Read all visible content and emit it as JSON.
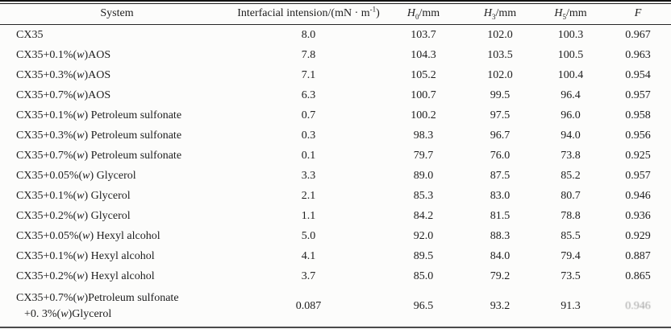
{
  "table": {
    "headers": {
      "system": "System",
      "ift": {
        "pre": "Interfacial intension/(mN · m",
        "sup": "-1",
        "post": ")"
      },
      "h0": {
        "base": "H",
        "sub": "0",
        "unit": "/mm"
      },
      "h3": {
        "base": "H",
        "sub": "3",
        "unit": "/mm"
      },
      "h5": {
        "base": "H",
        "sub": "5",
        "unit": "/mm"
      },
      "f": "F"
    },
    "rows": [
      {
        "system": "CX35",
        "ift": "8.0",
        "h0": "103.7",
        "h3": "102.0",
        "h5": "100.3",
        "f": "0.967"
      },
      {
        "system": "CX35+0.1%(w)AOS",
        "ift": "7.8",
        "h0": "104.3",
        "h3": "103.5",
        "h5": "100.5",
        "f": "0.963"
      },
      {
        "system": "CX35+0.3%(w)AOS",
        "ift": "7.1",
        "h0": "105.2",
        "h3": "102.0",
        "h5": "100.4",
        "f": "0.954"
      },
      {
        "system": "CX35+0.7%(w)AOS",
        "ift": "6.3",
        "h0": "100.7",
        "h3": "99.5",
        "h5": "96.4",
        "f": "0.957"
      },
      {
        "system": "CX35+0.1%(w) Petroleum sulfonate",
        "ift": "0.7",
        "h0": "100.2",
        "h3": "97.5",
        "h5": "96.0",
        "f": "0.958"
      },
      {
        "system": "CX35+0.3%(w) Petroleum sulfonate",
        "ift": "0.3",
        "h0": "98.3",
        "h3": "96.7",
        "h5": "94.0",
        "f": "0.956"
      },
      {
        "system": "CX35+0.7%(w) Petroleum sulfonate",
        "ift": "0.1",
        "h0": "79.7",
        "h3": "76.0",
        "h5": "73.8",
        "f": "0.925"
      },
      {
        "system": "CX35+0.05%(w) Glycerol",
        "ift": "3.3",
        "h0": "89.0",
        "h3": "87.5",
        "h5": "85.2",
        "f": "0.957"
      },
      {
        "system": "CX35+0.1%(w) Glycerol",
        "ift": "2.1",
        "h0": "85.3",
        "h3": "83.0",
        "h5": "80.7",
        "f": "0.946"
      },
      {
        "system": "CX35+0.2%(w) Glycerol",
        "ift": "1.1",
        "h0": "84.2",
        "h3": "81.5",
        "h5": "78.8",
        "f": "0.936"
      },
      {
        "system": "CX35+0.05%(w) Hexyl alcohol",
        "ift": "5.0",
        "h0": "92.0",
        "h3": "88.3",
        "h5": "85.5",
        "f": "0.929"
      },
      {
        "system": "CX35+0.1%(w) Hexyl alcohol",
        "ift": "4.1",
        "h0": "89.5",
        "h3": "84.0",
        "h5": "79.4",
        "f": "0.887"
      },
      {
        "system": "CX35+0.2%(w) Hexyl alcohol",
        "ift": "3.7",
        "h0": "85.0",
        "h3": "79.2",
        "h5": "73.5",
        "f": "0.865"
      },
      {
        "system": "CX35+0.7%(w)Petroleum sulfonate",
        "system_line2": "+0. 3%(w)Glycerol",
        "ift": "0.087",
        "h0": "96.5",
        "h3": "93.2",
        "h5": "91.3",
        "f": "0.946"
      }
    ]
  },
  "chart_data": {
    "type": "table",
    "title": "",
    "columns": [
      "System",
      "Interfacial intension/(mN · m-1)",
      "H0/mm",
      "H3/mm",
      "H5/mm",
      "F"
    ],
    "rows": [
      [
        "CX35",
        "8.0",
        "103.7",
        "102.0",
        "100.3",
        "0.967"
      ],
      [
        "CX35+0.1%(w)AOS",
        "7.8",
        "104.3",
        "103.5",
        "100.5",
        "0.963"
      ],
      [
        "CX35+0.3%(w)AOS",
        "7.1",
        "105.2",
        "102.0",
        "100.4",
        "0.954"
      ],
      [
        "CX35+0.7%(w)AOS",
        "6.3",
        "100.7",
        "99.5",
        "96.4",
        "0.957"
      ],
      [
        "CX35+0.1%(w) Petroleum sulfonate",
        "0.7",
        "100.2",
        "97.5",
        "96.0",
        "0.958"
      ],
      [
        "CX35+0.3%(w) Petroleum sulfonate",
        "0.3",
        "98.3",
        "96.7",
        "94.0",
        "0.956"
      ],
      [
        "CX35+0.7%(w) Petroleum sulfonate",
        "0.1",
        "79.7",
        "76.0",
        "73.8",
        "0.925"
      ],
      [
        "CX35+0.05%(w) Glycerol",
        "3.3",
        "89.0",
        "87.5",
        "85.2",
        "0.957"
      ],
      [
        "CX35+0.1%(w) Glycerol",
        "2.1",
        "85.3",
        "83.0",
        "80.7",
        "0.946"
      ],
      [
        "CX35+0.2%(w) Glycerol",
        "1.1",
        "84.2",
        "81.5",
        "78.8",
        "0.936"
      ],
      [
        "CX35+0.05%(w) Hexyl alcohol",
        "5.0",
        "92.0",
        "88.3",
        "85.5",
        "0.929"
      ],
      [
        "CX35+0.1%(w) Hexyl alcohol",
        "4.1",
        "89.5",
        "84.0",
        "79.4",
        "0.887"
      ],
      [
        "CX35+0.2%(w) Hexyl alcohol",
        "3.7",
        "85.0",
        "79.2",
        "73.5",
        "0.865"
      ],
      [
        "CX35+0.7%(w)Petroleum sulfonate +0. 3%(w)Glycerol",
        "0.087",
        "96.5",
        "93.2",
        "91.3",
        "0.946"
      ]
    ]
  }
}
